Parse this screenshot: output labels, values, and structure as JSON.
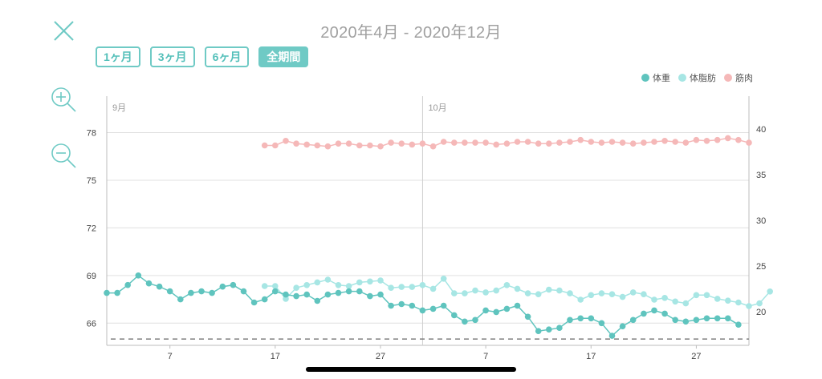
{
  "header": {
    "title": "2020年4月 - 2020年12月",
    "ranges": [
      "1ヶ月",
      "3ヶ月",
      "6ヶ月",
      "全期間"
    ],
    "active_range": "全期間"
  },
  "colors": {
    "weight": "#5fc4be",
    "fat": "#a7e6e4",
    "muscle": "#f5b8b8",
    "accent": "#6fcac5"
  },
  "chart_data": {
    "type": "line",
    "month_labels": [
      {
        "label": "9月",
        "x": 0
      },
      {
        "label": "10月",
        "x": 30
      }
    ],
    "x_ticks": [
      {
        "label": "7",
        "x": 6
      },
      {
        "label": "17",
        "x": 16
      },
      {
        "label": "27",
        "x": 26
      },
      {
        "label": "7",
        "x": 36
      },
      {
        "label": "17",
        "x": 46
      },
      {
        "label": "27",
        "x": 56
      }
    ],
    "xlim": [
      0,
      61
    ],
    "y_left": {
      "ticks": [
        66,
        69,
        72,
        75,
        78
      ],
      "range": [
        64.6,
        80.3
      ]
    },
    "y_right": {
      "ticks": [
        20,
        25,
        30,
        35,
        40
      ],
      "range": [
        16.3,
        43.6
      ]
    },
    "target_line": 65.0,
    "legend": [
      "体重",
      "体脂肪",
      "筋肉"
    ],
    "series": [
      {
        "name": "体重",
        "axis": "left",
        "x_start": 0,
        "values": [
          67.9,
          67.9,
          68.4,
          69.0,
          68.5,
          68.3,
          68.0,
          67.5,
          67.9,
          68.0,
          67.9,
          68.3,
          68.4,
          68.0,
          67.3,
          67.5,
          68.0,
          67.8,
          67.7,
          67.8,
          67.4,
          67.8,
          67.9,
          68.0,
          68.0,
          67.7,
          67.8,
          67.1,
          67.2,
          67.1,
          66.8,
          66.9,
          67.1,
          66.5,
          66.1,
          66.2,
          66.8,
          66.7,
          66.9,
          67.1,
          66.4,
          65.5,
          65.6,
          65.7,
          66.2,
          66.3,
          66.3,
          66.0,
          65.2,
          65.8,
          66.2,
          66.6,
          66.8,
          66.6,
          66.2,
          66.1,
          66.2,
          66.3,
          66.3,
          66.3,
          65.9
        ]
      },
      {
        "name": "体脂肪",
        "axis": "right",
        "x_start": 15,
        "values": [
          22.8,
          22.8,
          21.4,
          22.6,
          22.9,
          23.2,
          23.5,
          22.9,
          22.8,
          23.2,
          23.3,
          23.4,
          22.6,
          22.7,
          22.7,
          22.9,
          22.5,
          23.6,
          22.0,
          22.0,
          22.3,
          22.1,
          22.3,
          22.9,
          22.5,
          22.0,
          21.9,
          22.4,
          22.3,
          22.0,
          21.3,
          21.8,
          22.0,
          21.9,
          21.6,
          22.1,
          21.9,
          21.3,
          21.5,
          21.1,
          20.9,
          21.8,
          21.8,
          21.4,
          21.2,
          21.0,
          20.6,
          20.9,
          22.2
        ]
      },
      {
        "name": "筋肉",
        "axis": "right",
        "x_start": 15,
        "values": [
          38.2,
          38.2,
          38.7,
          38.4,
          38.3,
          38.2,
          38.1,
          38.4,
          38.4,
          38.2,
          38.2,
          38.1,
          38.5,
          38.4,
          38.3,
          38.4,
          38.1,
          38.6,
          38.5,
          38.5,
          38.5,
          38.5,
          38.3,
          38.4,
          38.6,
          38.6,
          38.4,
          38.4,
          38.5,
          38.6,
          38.8,
          38.6,
          38.5,
          38.6,
          38.5,
          38.4,
          38.5,
          38.6,
          38.7,
          38.6,
          38.5,
          38.8,
          38.7,
          38.8,
          39.0,
          38.8,
          38.5
        ]
      }
    ]
  }
}
